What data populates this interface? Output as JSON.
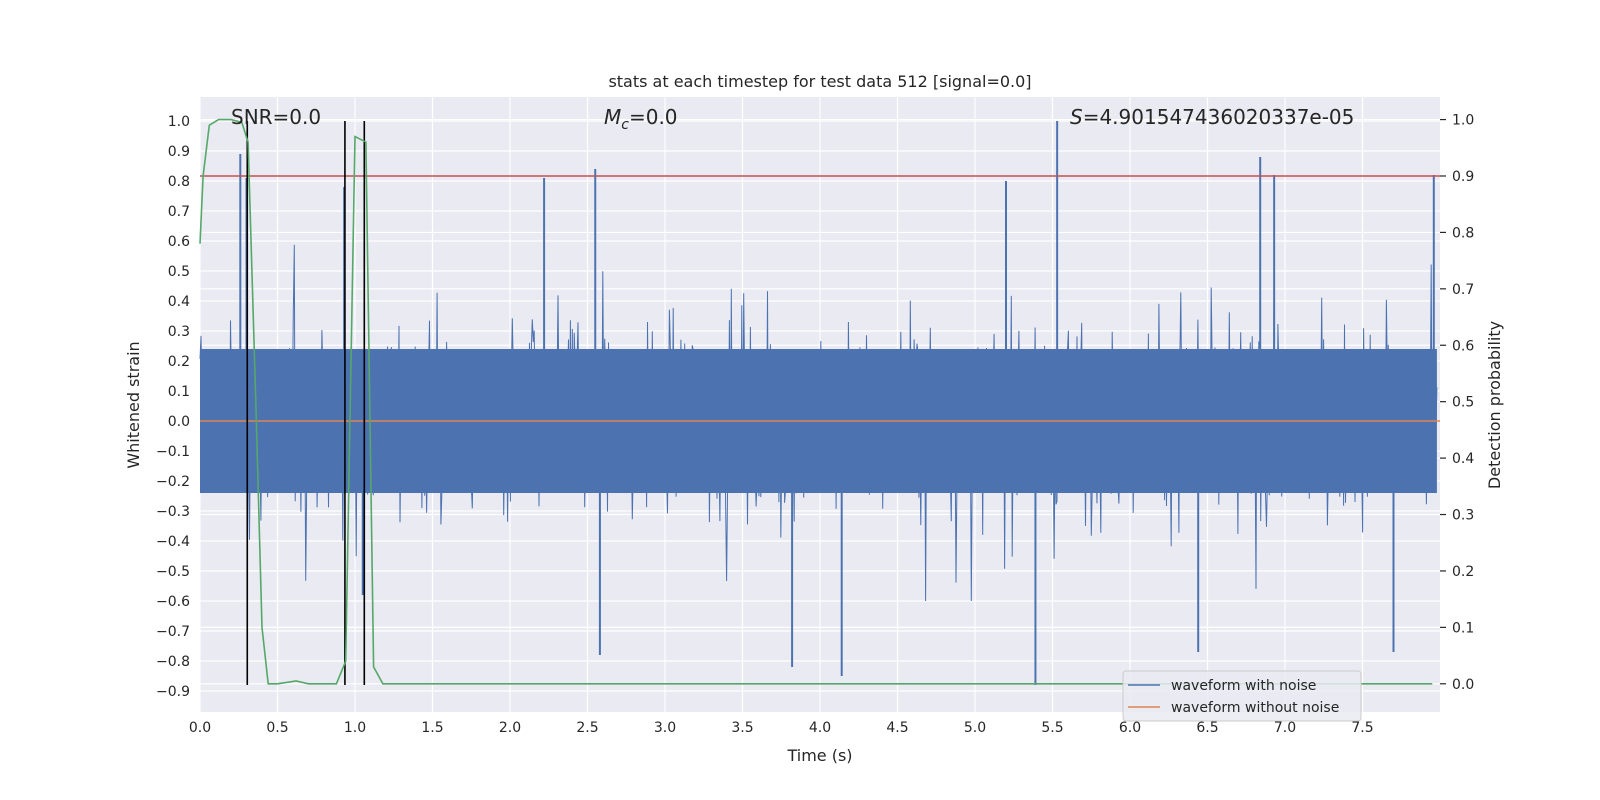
{
  "chart_data": {
    "type": "line",
    "title": "stats at each timestep for test data 512 [signal=0.0]",
    "xlabel": "Time (s)",
    "ylabel": "Whitened strain",
    "y2label": "Detection probability",
    "xlim": [
      0.0,
      8.0
    ],
    "ylim": [
      -0.97,
      1.08
    ],
    "y2lim": [
      -0.05,
      1.04
    ],
    "xticks": [
      0.0,
      0.5,
      1.0,
      1.5,
      2.0,
      2.5,
      3.0,
      3.5,
      4.0,
      4.5,
      5.0,
      5.5,
      6.0,
      6.5,
      7.0,
      7.5
    ],
    "xtick_labels": [
      "0.0",
      "0.5",
      "1.0",
      "1.5",
      "2.0",
      "2.5",
      "3.0",
      "3.5",
      "4.0",
      "4.5",
      "5.0",
      "5.5",
      "6.0",
      "6.5",
      "7.0",
      "7.5"
    ],
    "yticks": [
      -0.9,
      -0.8,
      -0.7,
      -0.6,
      -0.5,
      -0.4,
      -0.3,
      -0.2,
      -0.1,
      0.0,
      0.1,
      0.2,
      0.3,
      0.4,
      0.5,
      0.6,
      0.7,
      0.8,
      0.9,
      1.0
    ],
    "ytick_labels": [
      "−0.9",
      "−0.8",
      "−0.7",
      "−0.6",
      "−0.5",
      "−0.4",
      "−0.3",
      "−0.2",
      "−0.1",
      "0.0",
      "0.1",
      "0.2",
      "0.3",
      "0.4",
      "0.5",
      "0.6",
      "0.7",
      "0.8",
      "0.9",
      "1.0"
    ],
    "y2ticks": [
      0.0,
      0.1,
      0.2,
      0.3,
      0.4,
      0.5,
      0.6,
      0.7,
      0.8,
      0.9,
      1.0
    ],
    "y2tick_labels": [
      "0.0",
      "0.1",
      "0.2",
      "0.3",
      "0.4",
      "0.5",
      "0.6",
      "0.7",
      "0.8",
      "0.9",
      "1.0"
    ],
    "annotations": {
      "snr": "SNR=0.0",
      "mc_symbol": "M",
      "mc_subscript": "c",
      "mc_value": "=0.0",
      "s_symbol": "S",
      "s_value": "=4.901547436020337e-05"
    },
    "series": [
      {
        "name": "waveform with noise",
        "axis": "left",
        "color": "#4c72b0",
        "kind": "noise",
        "envelope": 0.22,
        "peaks": [
          {
            "x": 0.26,
            "y": 0.89
          },
          {
            "x": 0.3,
            "y": 0.81
          },
          {
            "x": 0.93,
            "y": 0.78
          },
          {
            "x": 1.05,
            "y": -0.58
          },
          {
            "x": 2.22,
            "y": 0.81
          },
          {
            "x": 2.55,
            "y": 0.84
          },
          {
            "x": 5.2,
            "y": 0.8
          },
          {
            "x": 5.39,
            "y": -0.88
          },
          {
            "x": 5.53,
            "y": 1.0
          },
          {
            "x": 6.84,
            "y": 0.88
          },
          {
            "x": 6.93,
            "y": 0.82
          },
          {
            "x": 7.96,
            "y": 0.82
          },
          {
            "x": 2.58,
            "y": -0.78
          },
          {
            "x": 3.82,
            "y": -0.82
          },
          {
            "x": 4.14,
            "y": -0.85
          },
          {
            "x": 6.44,
            "y": -0.77
          },
          {
            "x": 7.7,
            "y": -0.77
          }
        ]
      },
      {
        "name": "waveform without noise",
        "axis": "left",
        "color": "#dd8452",
        "x": [
          0.0,
          8.0
        ],
        "y": [
          0.0,
          0.0
        ]
      },
      {
        "name": "detection probability",
        "axis": "right",
        "color": "#55a868",
        "x": [
          0.0,
          0.02,
          0.06,
          0.12,
          0.2,
          0.27,
          0.31,
          0.36,
          0.4,
          0.44,
          0.5,
          0.62,
          0.7,
          0.8,
          0.88,
          0.94,
          1.0,
          1.07,
          1.12,
          1.18,
          1.3,
          2.0,
          3.0,
          4.0,
          5.0,
          6.0,
          7.0,
          7.95
        ],
        "y": [
          0.78,
          0.9,
          0.99,
          1.0,
          1.0,
          0.995,
          0.96,
          0.5,
          0.1,
          0.0,
          0.0,
          0.005,
          0.0,
          0.0,
          0.0,
          0.04,
          0.97,
          0.96,
          0.03,
          0.0,
          0.0,
          0.0,
          0.0,
          0.0,
          0.0,
          0.0,
          0.0,
          0.0
        ]
      }
    ],
    "threshold": {
      "axis": "right",
      "value": 0.9,
      "color": "#c44e52"
    },
    "vertical_lines": [
      0.305,
      0.935,
      1.06
    ],
    "legend": {
      "position": "lower-right",
      "entries": [
        "waveform with noise",
        "waveform without noise"
      ]
    }
  }
}
